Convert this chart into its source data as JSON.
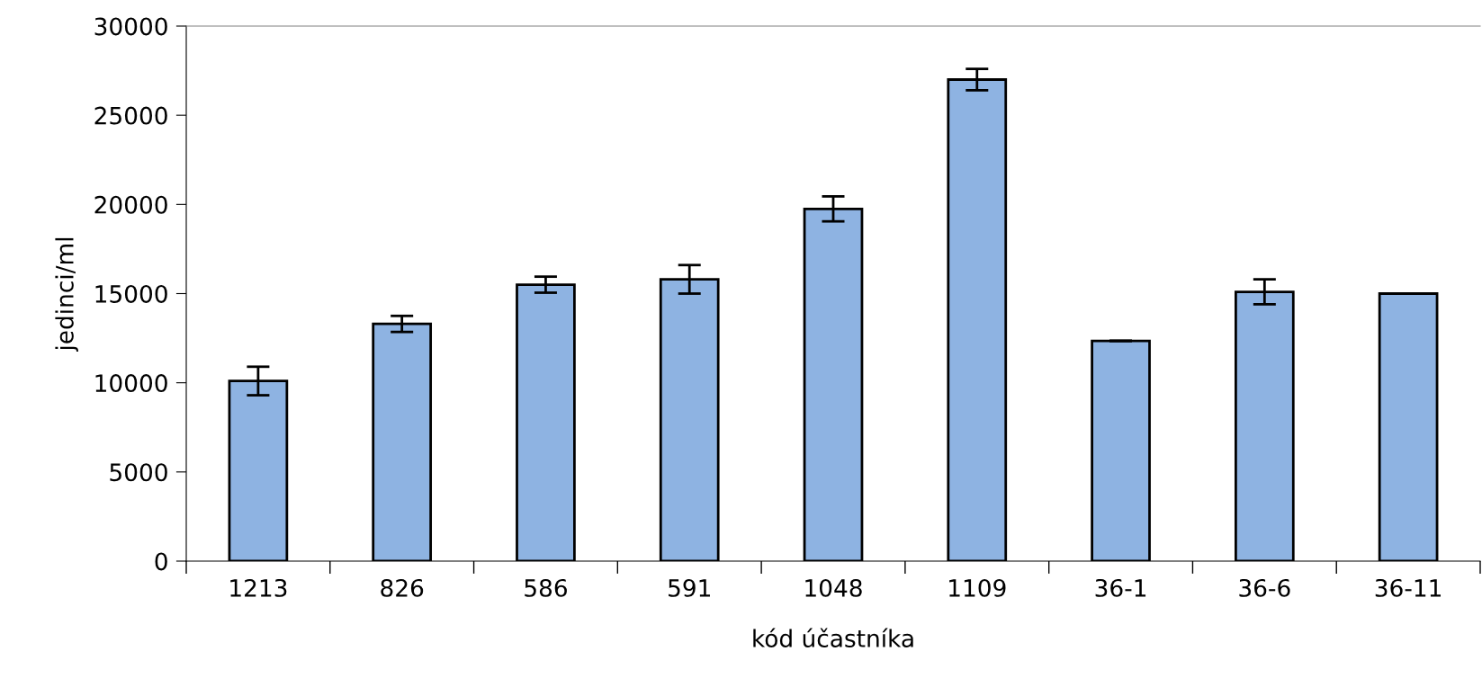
{
  "chart_data": {
    "type": "bar",
    "xlabel": "kód účastníka",
    "ylabel": "jedinci/ml",
    "categories": [
      "1213",
      "826",
      "586",
      "591",
      "1048",
      "1109",
      "36-1",
      "36-6",
      "36-11"
    ],
    "values": [
      10100,
      13300,
      15500,
      15800,
      19750,
      27000,
      12350,
      15100,
      15000
    ],
    "errors": [
      800,
      450,
      450,
      800,
      700,
      600,
      0,
      700,
      null
    ],
    "color": "#8eb3e2",
    "ylim": [
      0,
      30000
    ],
    "yticks": [
      0,
      5000,
      10000,
      15000,
      20000,
      25000,
      30000
    ],
    "grid": false,
    "legend": false
  }
}
